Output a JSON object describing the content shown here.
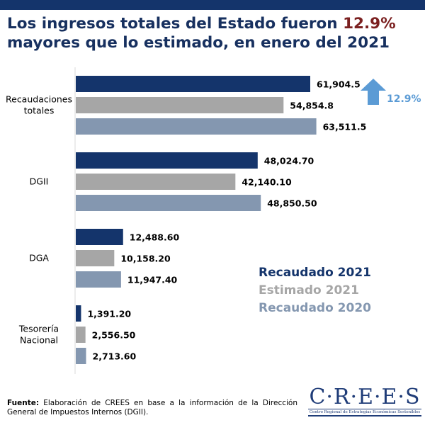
{
  "title": {
    "part1": "Los ingresos totales del Estado fueron ",
    "highlight": "12.9%",
    "part2": "mayores que lo estimado, en enero del 2021"
  },
  "chart_data": {
    "type": "bar",
    "orientation": "horizontal",
    "categories": [
      "Recaudaciones totales",
      "DGII",
      "DGA",
      "Tesorería Nacional"
    ],
    "series": [
      {
        "name": "Recaudado 2021",
        "color": "#14346b",
        "values": [
          61904.5,
          48024.7,
          12488.6,
          1391.2
        ],
        "labels": [
          "61,904.5",
          "48,024.70",
          "12,488.60",
          "1,391.20"
        ]
      },
      {
        "name": "Estimado 2021",
        "color": "#a6a6a6",
        "values": [
          54854.8,
          42140.1,
          10158.2,
          2556.5
        ],
        "labels": [
          "54,854.8",
          "42,140.10",
          "10,158.20",
          "2,556.50"
        ]
      },
      {
        "name": "Recaudado 2020",
        "color": "#8497b0",
        "values": [
          63511.5,
          48850.5,
          11947.4,
          2713.6
        ],
        "labels": [
          "63,511.5",
          "48,850.50",
          "11,947.40",
          "2,713.60"
        ]
      }
    ],
    "annotation": {
      "text": "12.9%",
      "color": "#5b9bd5",
      "icon": "arrow-up-icon"
    },
    "legend_placement": "right",
    "grid": false
  },
  "footer": {
    "label": "Fuente:",
    "text": " Elaboración de CREES en base a la información de la Dirección General de Impuestos Internos (DGII)."
  },
  "logo": {
    "name": "C·R·E·E·S",
    "subtitle": "Centro Regional de Estrategias Económicas Sostenibles"
  }
}
